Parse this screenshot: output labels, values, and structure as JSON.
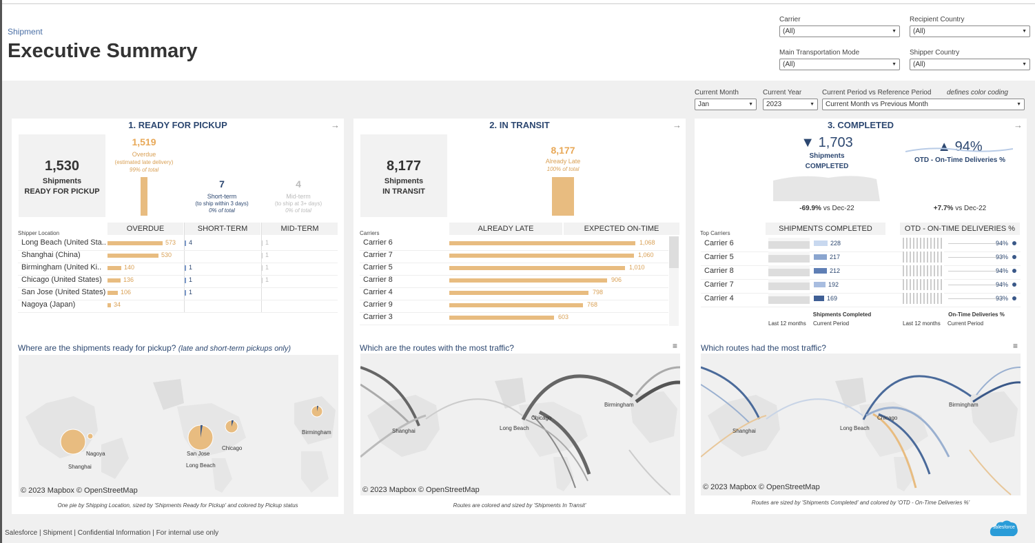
{
  "header": {
    "breadcrumb": "Shipment",
    "title": "Executive Summary",
    "filters": [
      {
        "label": "Carrier",
        "value": "(All)"
      },
      {
        "label": "Recipient Country",
        "value": "(All)"
      },
      {
        "label": "Main Transportation Mode",
        "value": "(All)"
      },
      {
        "label": "Shipper Country",
        "value": "(All)"
      }
    ]
  },
  "period": {
    "month_label": "Current Month",
    "month_value": "Jan",
    "year_label": "Current Year",
    "year_value": "2023",
    "period_label": "Current Period vs Reference Period",
    "period_value": "Current Month vs Previous Month",
    "note": "defines color coding"
  },
  "pickup": {
    "title": "1. READY FOR PICKUP",
    "total": "1,530",
    "total_l1": "Shipments",
    "total_l2": "READY FOR PICKUP",
    "overdue_value": "1,519",
    "overdue_label": "Overdue",
    "overdue_sub": "(estimated late delivery)",
    "overdue_pct": "99% of total",
    "short_value": "7",
    "short_label": "Short-term",
    "short_sub": "(to ship within 3 days)",
    "short_pct": "0% of total",
    "mid_value": "4",
    "mid_label": "Mid-term",
    "mid_sub": "(to ship at 3+ days)",
    "mid_pct": "0% of total",
    "loc_header": "Shipper Location",
    "col_overdue": "OVERDUE",
    "col_short": "SHORT-TERM",
    "col_mid": "MID-TERM",
    "rows": [
      {
        "name": "Long Beach (United Sta..",
        "overdue": 573,
        "overdue_label": "573",
        "short": "4",
        "mid": "1"
      },
      {
        "name": "Shanghai (China)",
        "overdue": 530,
        "overdue_label": "530",
        "short": "",
        "mid": "1"
      },
      {
        "name": "Birmingham (United Ki..",
        "overdue": 140,
        "overdue_label": "140",
        "short": "1",
        "mid": "1"
      },
      {
        "name": "Chicago (United States)",
        "overdue": 136,
        "overdue_label": "136",
        "short": "1",
        "mid": "1"
      },
      {
        "name": "San Jose (United States)",
        "overdue": 106,
        "overdue_label": "106",
        "short": "1",
        "mid": ""
      },
      {
        "name": "Nagoya (Japan)",
        "overdue": 34,
        "overdue_label": "34",
        "short": "",
        "mid": ""
      }
    ],
    "map_question": "Where are the shipments ready for pickup?",
    "map_question_note": "(late and short-term pickups only)",
    "cities": [
      "Nagoya",
      "Shanghai",
      "San Jose",
      "Long Beach",
      "Chicago",
      "Birmingham"
    ],
    "copyright": "© 2023 Mapbox  © OpenStreetMap",
    "caption": "One pie by Shipping Location, sized by 'Shipments Ready for Pickup' and colored by Pickup status"
  },
  "transit": {
    "title": "2. IN TRANSIT",
    "total": "8,177",
    "total_l1": "Shipments",
    "total_l2": "IN TRANSIT",
    "late_value": "8,177",
    "late_label": "Already Late",
    "late_pct": "100% of total",
    "carriers_header": "Carriers",
    "col_late": "ALREADY LATE",
    "col_ontime": "EXPECTED ON-TIME",
    "rows": [
      {
        "name": "Carrier 6",
        "value": 1068,
        "label": "1,068"
      },
      {
        "name": "Carrier 7",
        "value": 1060,
        "label": "1,060"
      },
      {
        "name": "Carrier 5",
        "value": 1010,
        "label": "1,010"
      },
      {
        "name": "Carrier 8",
        "value": 906,
        "label": "906"
      },
      {
        "name": "Carrier 4",
        "value": 798,
        "label": "798"
      },
      {
        "name": "Carrier 9",
        "value": 768,
        "label": "768"
      },
      {
        "name": "Carrier 3",
        "value": 603,
        "label": "603"
      }
    ],
    "map_question": "Which are the routes with the most traffic?",
    "cities": [
      "Shanghai",
      "Long Beach",
      "Chicago",
      "Birmingham"
    ],
    "copyright": "© 2023 Mapbox  © OpenStreetMap",
    "caption": "Routes are colored and sized by 'Shipments In Transit'"
  },
  "completed": {
    "title": "3. COMPLETED",
    "shipments_value": "1,703",
    "shipments_l1": "Shipments",
    "shipments_l2": "COMPLETED",
    "shipments_delta": "-69.9%",
    "shipments_vs": "vs Dec-22",
    "otd_value": "94%",
    "otd_label": "OTD - On-Time Deliveries %",
    "otd_delta": "+7.7%",
    "otd_vs": "vs Dec-22",
    "top_header": "Top Carriers",
    "col_ship": "SHIPMENTS COMPLETED",
    "col_otd": "OTD - ON-TIME DELIVERIES %",
    "rows": [
      {
        "name": "Carrier 6",
        "ship": 228,
        "ship_label": "228",
        "otd": 94,
        "otd_label": "94%"
      },
      {
        "name": "Carrier 5",
        "ship": 217,
        "ship_label": "217",
        "otd": 93,
        "otd_label": "93%"
      },
      {
        "name": "Carrier 8",
        "ship": 212,
        "ship_label": "212",
        "otd": 94,
        "otd_label": "94%"
      },
      {
        "name": "Carrier 7",
        "ship": 192,
        "ship_label": "192",
        "otd": 94,
        "otd_label": "94%"
      },
      {
        "name": "Carrier 4",
        "ship": 169,
        "ship_label": "169",
        "otd": 93,
        "otd_label": "93%"
      }
    ],
    "ship_foot": "Shipments Completed",
    "otd_foot": "On-Time Deliveries %",
    "last12": "Last 12 months",
    "current": "Current Period",
    "map_question": "Which routes had the most traffic?",
    "cities": [
      "Shanghai",
      "Long Beach",
      "Chicago",
      "Birmingham"
    ],
    "copyright": "© 2023 Mapbox  © OpenStreetMap",
    "caption": "Routes are sized by 'Shipments Completed' and colored by 'OTD - On-Time Deliveries %'"
  },
  "footer": {
    "text": "Salesforce | Shipment | Confidential Information | For internal use only",
    "logo": "salesforce"
  },
  "colors": {
    "accent": "#2c4770",
    "late": "#e8bc80",
    "late_text": "#d9a055",
    "blue": "#7a98c8",
    "grey_bg": "#f2f2f2"
  }
}
